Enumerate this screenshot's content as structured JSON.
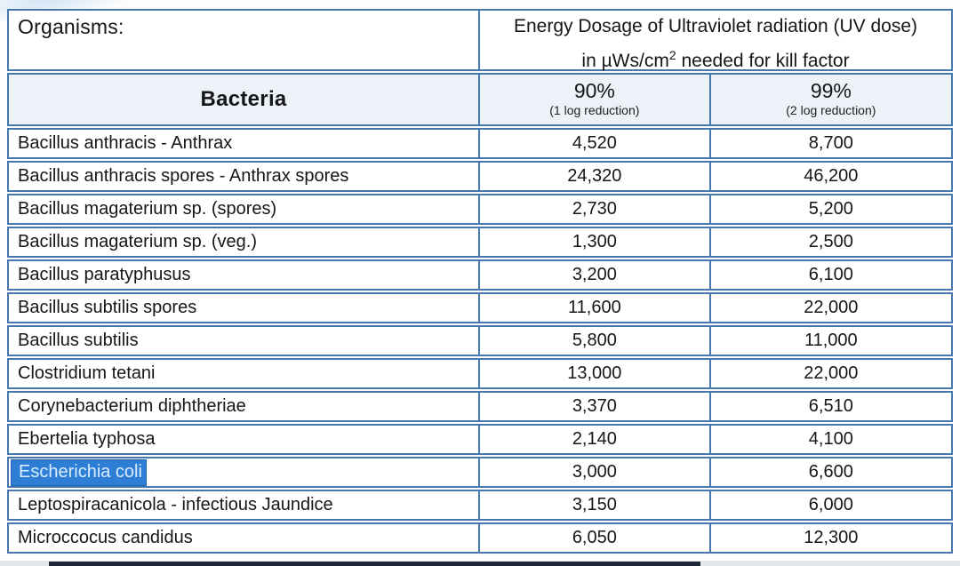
{
  "colors": {
    "table_border_blue": "#4678ae",
    "header_row_bg": "#edf2f9",
    "selection_bg": "#2e7ed5",
    "selection_text": "#d9eeff",
    "bottom_bar": "#1e2838"
  },
  "table": {
    "organisms_label": "Organisms:",
    "energy_header": {
      "line1": "Energy Dosage of Ultraviolet radiation (UV dose)",
      "line2_pre": "in µWs/cm",
      "line2_sup": "2",
      "line2_post": " needed for kill factor"
    },
    "bacteria_label": "Bacteria",
    "col_90": {
      "pct": "90%",
      "note": "(1 log reduction)"
    },
    "col_99": {
      "pct": "99%",
      "note": "(2 log reduction)"
    },
    "highlighted_row": "Escherichia coli",
    "rows": [
      {
        "name": "Bacillus anthracis - Anthrax",
        "d90": "4,520",
        "d99": "8,700"
      },
      {
        "name": "Bacillus anthracis spores - Anthrax spores",
        "d90": "24,320",
        "d99": "46,200"
      },
      {
        "name": "Bacillus magaterium sp. (spores)",
        "d90": "2,730",
        "d99": "5,200"
      },
      {
        "name": "Bacillus magaterium sp. (veg.)",
        "d90": "1,300",
        "d99": "2,500"
      },
      {
        "name": "Bacillus paratyphusus",
        "d90": "3,200",
        "d99": "6,100"
      },
      {
        "name": "Bacillus subtilis spores",
        "d90": "11,600",
        "d99": "22,000"
      },
      {
        "name": "Bacillus subtilis",
        "d90": "5,800",
        "d99": "11,000"
      },
      {
        "name": "Clostridium tetani",
        "d90": "13,000",
        "d99": "22,000"
      },
      {
        "name": "Corynebacterium diphtheriae",
        "d90": "3,370",
        "d99": "6,510"
      },
      {
        "name": "Ebertelia typhosa",
        "d90": "2,140",
        "d99": "4,100"
      },
      {
        "name": "Escherichia coli",
        "d90": "3,000",
        "d99": "6,600"
      },
      {
        "name": "Leptospiracanicola - infectious Jaundice",
        "d90": "3,150",
        "d99": "6,000"
      },
      {
        "name": "Microccocus candidus",
        "d90": "6,050",
        "d99": "12,300"
      }
    ]
  }
}
